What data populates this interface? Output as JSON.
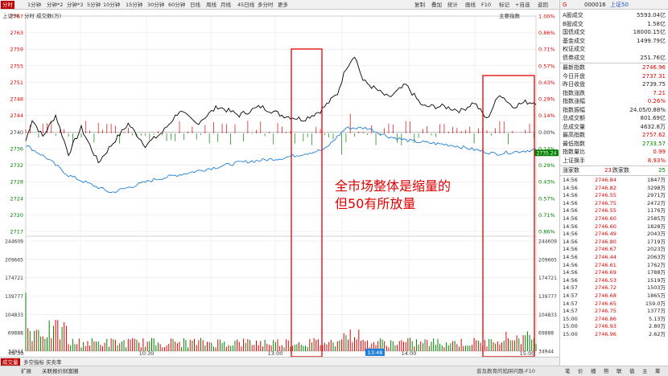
{
  "toolbar": {
    "period_tabs": [
      "分时",
      "1分钟",
      "分钟*2",
      "分钟*3",
      "5分钟",
      "10分钟",
      "15分钟",
      "30分钟",
      "60分钟",
      "日线",
      "周线",
      "月线",
      "45日线",
      "多分时",
      "更多"
    ],
    "active_period": "分时",
    "right_tabs": [
      "复制",
      "叠加",
      "统计",
      "画线",
      "F10",
      "标记",
      "+自选",
      "返回"
    ]
  },
  "subbar": {
    "symbol": "上证50",
    "mode": "分时 成交数(万)",
    "right_link": "主要指数"
  },
  "panel": {
    "title_marker": "G",
    "code": "000016",
    "name": "上证50",
    "stats": [
      {
        "k": "A股成交",
        "v": "5593.04亿",
        "c": "dark"
      },
      {
        "k": "B股成交",
        "v": "1.58亿",
        "c": "dark"
      },
      {
        "k": "国债成交",
        "v": "18000.15亿",
        "c": "dark"
      },
      {
        "k": "基金成交",
        "v": "1499.79亿",
        "c": "dark"
      },
      {
        "k": "权证成交",
        "v": "",
        "c": "dark"
      },
      {
        "k": "债券成交",
        "v": "251.76亿",
        "c": "dark"
      }
    ],
    "quote": [
      {
        "k": "最新指数",
        "v": "2746.96",
        "c": "red"
      },
      {
        "k": "今日开盘",
        "v": "2737.31",
        "c": "red"
      },
      {
        "k": "昨日收盘",
        "v": "2739.75",
        "c": "dark"
      },
      {
        "k": "指数涨跌",
        "v": "7.21",
        "c": "red"
      },
      {
        "k": "指数涨幅",
        "v": "0.26%",
        "c": "red"
      },
      {
        "k": "指数振幅",
        "v": "24.05/0.88%",
        "c": "dark"
      },
      {
        "k": "总成交额",
        "v": "801.69亿",
        "c": "dark"
      },
      {
        "k": "总成交量",
        "v": "4632.8万",
        "c": "dark"
      },
      {
        "k": "最高指数",
        "v": "2757.62",
        "c": "red"
      },
      {
        "k": "最低指数",
        "v": "2733.57",
        "c": "green"
      },
      {
        "k": "指数量比",
        "v": "0.99",
        "c": "red"
      },
      {
        "k": "上证换手",
        "v": "8.93%",
        "c": "red"
      }
    ],
    "breadth": {
      "up_label": "涨家数",
      "up": "23",
      "down_label": "跌家数",
      "down": "25"
    },
    "trades": [
      {
        "t": "14:56",
        "p": "2746.84",
        "q": "1847万"
      },
      {
        "t": "14:56",
        "p": "2746.82",
        "q": "3298万"
      },
      {
        "t": "14:56",
        "p": "2746.55",
        "q": "2971万"
      },
      {
        "t": "14:56",
        "p": "2746.75",
        "q": "2472万"
      },
      {
        "t": "14:56",
        "p": "2746.55",
        "q": "1176万"
      },
      {
        "t": "14:56",
        "p": "2746.60",
        "q": "2585万"
      },
      {
        "t": "14:56",
        "p": "2746.60",
        "q": "1828万"
      },
      {
        "t": "14:56",
        "p": "2746.49",
        "q": "2043万"
      },
      {
        "t": "14:56",
        "p": "2746.80",
        "q": "1719万"
      },
      {
        "t": "14:56",
        "p": "2746.67",
        "q": "2023万"
      },
      {
        "t": "14:56",
        "p": "2746.44",
        "q": "2063万"
      },
      {
        "t": "14:56",
        "p": "2746.61",
        "q": "1762万"
      },
      {
        "t": "14:56",
        "p": "2746.69",
        "q": "1788万"
      },
      {
        "t": "14:56",
        "p": "2746.53",
        "q": "1519万"
      },
      {
        "t": "14:57",
        "p": "2746.72",
        "q": "1503万"
      },
      {
        "t": "14:57",
        "p": "2746.68",
        "q": "1865万"
      },
      {
        "t": "14:57",
        "p": "2746.65",
        "q": "159.0万"
      },
      {
        "t": "14:57",
        "p": "2746.75",
        "q": "1377万"
      },
      {
        "t": "15:00",
        "p": "2746.86",
        "q": "5.13万"
      },
      {
        "t": "15:00",
        "p": "2746.93",
        "q": "2.80万"
      },
      {
        "t": "15:00",
        "p": "2746.96",
        "q": "2.62万"
      }
    ]
  },
  "chart_data": {
    "type": "line",
    "price_axis_left": [
      "2767",
      "2763",
      "2759",
      "2755",
      "2751",
      "2748",
      "2744",
      "2740",
      "2736",
      "2732",
      "2728",
      "2724",
      "2720",
      "2717"
    ],
    "pct_axis_right": [
      "1.00%",
      "0.86%",
      "0.71%",
      "0.57%",
      "0.43%",
      "0.29%",
      "0.14%",
      "0.00%",
      "0.14%",
      "0.29%",
      "0.43%",
      "0.57%",
      "0.71%",
      "0.86%"
    ],
    "volume_axis_left": [
      "244609",
      "209665",
      "174721",
      "139777",
      "104833",
      "69888",
      "34944"
    ],
    "volume_axis_right": [
      "244609",
      "209665",
      "174721",
      "139777",
      "104833",
      "69888",
      "34944"
    ],
    "time_labels": [
      "09:30",
      "10:30",
      "13:00",
      "14:00",
      "15:00"
    ],
    "cursor_time": "13:48",
    "cursor_price": "2735.24",
    "prev_close": 2739.75,
    "price_range": [
      2717,
      2767
    ],
    "colors": {
      "price": "#000000",
      "avg": "#1e7fd8",
      "up_bar": "#e00000",
      "down_bar": "#008000"
    }
  },
  "annotation": {
    "line1": "全市场整体是缩量的",
    "line2": "但50有所放量"
  },
  "bottom": {
    "tabs": [
      "成交量",
      "多空指标",
      "买卖率"
    ],
    "tabs2": [
      "扩展",
      "关联报价",
      "财富圈"
    ],
    "status": "普及教育的陷阱问题-F10",
    "mini": [
      "笔",
      "价",
      "细",
      "势",
      "联",
      "值",
      "主",
      "筹"
    ]
  }
}
